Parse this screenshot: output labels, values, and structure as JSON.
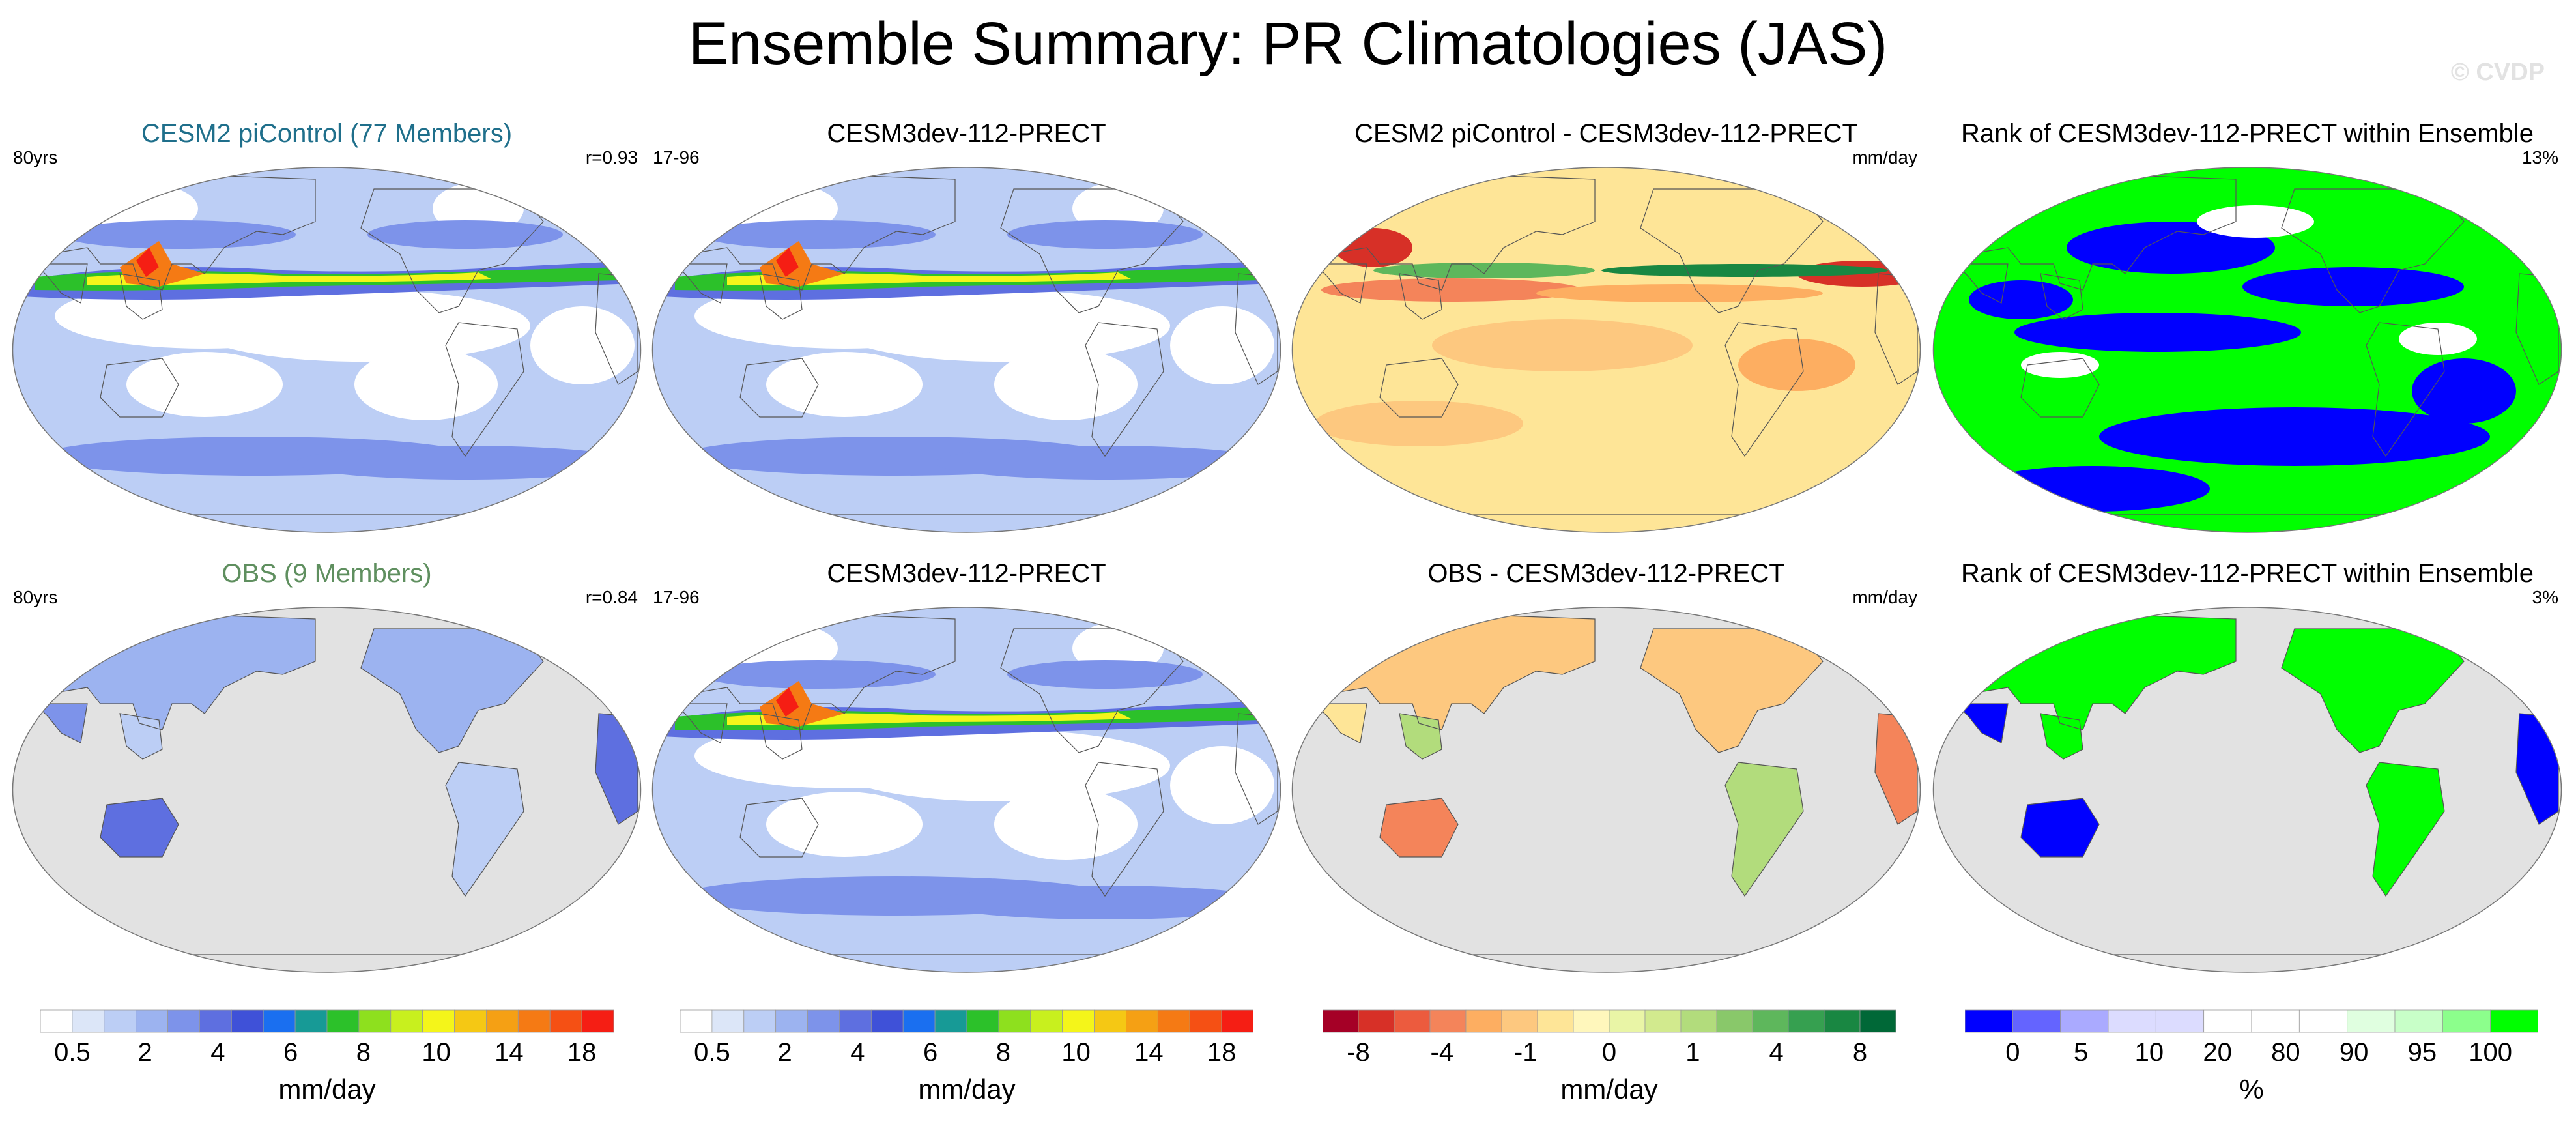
{
  "page": {
    "title": "Ensemble Summary: PR Climatologies (JAS)",
    "copyright": "© CVDP"
  },
  "colors": {
    "piControl_title": "#1f6f8b",
    "obs_title": "#5f8f5f",
    "land_masked": "#e2e2e2",
    "coast": "#555555"
  },
  "panels": [
    {
      "id": "p1",
      "title": "CESM2 piControl (77 Members)",
      "title_color": "#1f6f8b",
      "left": "80yrs",
      "right": "r=0.93",
      "kind": "precip",
      "obsmask": false
    },
    {
      "id": "p2",
      "title": "CESM3dev-112-PRECT",
      "title_color": "#000000",
      "left": "17-96",
      "right": "",
      "kind": "precip",
      "obsmask": false
    },
    {
      "id": "p3",
      "title": "CESM2 piControl - CESM3dev-112-PRECT",
      "title_color": "#000000",
      "left": "",
      "right": "mm/day",
      "kind": "diff",
      "obsmask": false
    },
    {
      "id": "p4",
      "title": "Rank of CESM3dev-112-PRECT within Ensemble",
      "title_color": "#000000",
      "left": "",
      "right": "13%",
      "kind": "rank",
      "obsmask": false
    },
    {
      "id": "p5",
      "title": "OBS (9 Members)",
      "title_color": "#5f8f5f",
      "left": "80yrs",
      "right": "r=0.84",
      "kind": "precip",
      "obsmask": true
    },
    {
      "id": "p6",
      "title": "CESM3dev-112-PRECT",
      "title_color": "#000000",
      "left": "17-96",
      "right": "",
      "kind": "precip",
      "obsmask": false
    },
    {
      "id": "p7",
      "title": "OBS - CESM3dev-112-PRECT",
      "title_color": "#000000",
      "left": "",
      "right": "mm/day",
      "kind": "diff",
      "obsmask": true
    },
    {
      "id": "p8",
      "title": "Rank of CESM3dev-112-PRECT within Ensemble",
      "title_color": "#000000",
      "left": "",
      "right": "3%",
      "kind": "rank",
      "obsmask": true
    }
  ],
  "colorbars": [
    {
      "id": "cb1",
      "units": "mm/day",
      "colors": [
        "#ffffff",
        "#dce6f8",
        "#bccef5",
        "#9cb3f0",
        "#7d93ea",
        "#5e6fe0",
        "#3f51d8",
        "#1a6ff0",
        "#179a96",
        "#2cc12a",
        "#8ee01e",
        "#c8f01e",
        "#f4f51a",
        "#f5c814",
        "#f5a014",
        "#f57a14",
        "#f55014",
        "#f51e14"
      ],
      "ticks": [
        "0.5",
        "2",
        "4",
        "6",
        "8",
        "10",
        "14",
        "18"
      ]
    },
    {
      "id": "cb2",
      "units": "mm/day",
      "colors": [
        "#ffffff",
        "#dce6f8",
        "#bccef5",
        "#9cb3f0",
        "#7d93ea",
        "#5e6fe0",
        "#3f51d8",
        "#1a6ff0",
        "#179a96",
        "#2cc12a",
        "#8ee01e",
        "#c8f01e",
        "#f4f51a",
        "#f5c814",
        "#f5a014",
        "#f57a14",
        "#f55014",
        "#f51e14"
      ],
      "ticks": [
        "0.5",
        "2",
        "4",
        "6",
        "8",
        "10",
        "14",
        "18"
      ]
    },
    {
      "id": "cb3",
      "units": "mm/day",
      "colors": [
        "#a50026",
        "#d73027",
        "#ec5b3e",
        "#f4845a",
        "#fdae61",
        "#fdc87f",
        "#fee597",
        "#fff7bc",
        "#e9f5a6",
        "#d2ea8e",
        "#b2dc7c",
        "#89c86a",
        "#5eb75c",
        "#36a050",
        "#198742",
        "#006837"
      ],
      "ticks": [
        "-8",
        "-4",
        "-1",
        "0",
        "1",
        "4",
        "8"
      ]
    },
    {
      "id": "cb4",
      "units": "%",
      "colors": [
        "#0000ff",
        "#6464ff",
        "#aaaaff",
        "#dcdcff",
        "#dcdcff",
        "#ffffff",
        "#ffffff",
        "#ffffff",
        "#e0ffe0",
        "#c8ffc8",
        "#8cff8c",
        "#00ff00"
      ],
      "ticks": [
        "0",
        "5",
        "10",
        "20",
        "80",
        "90",
        "95",
        "100"
      ]
    }
  ]
}
